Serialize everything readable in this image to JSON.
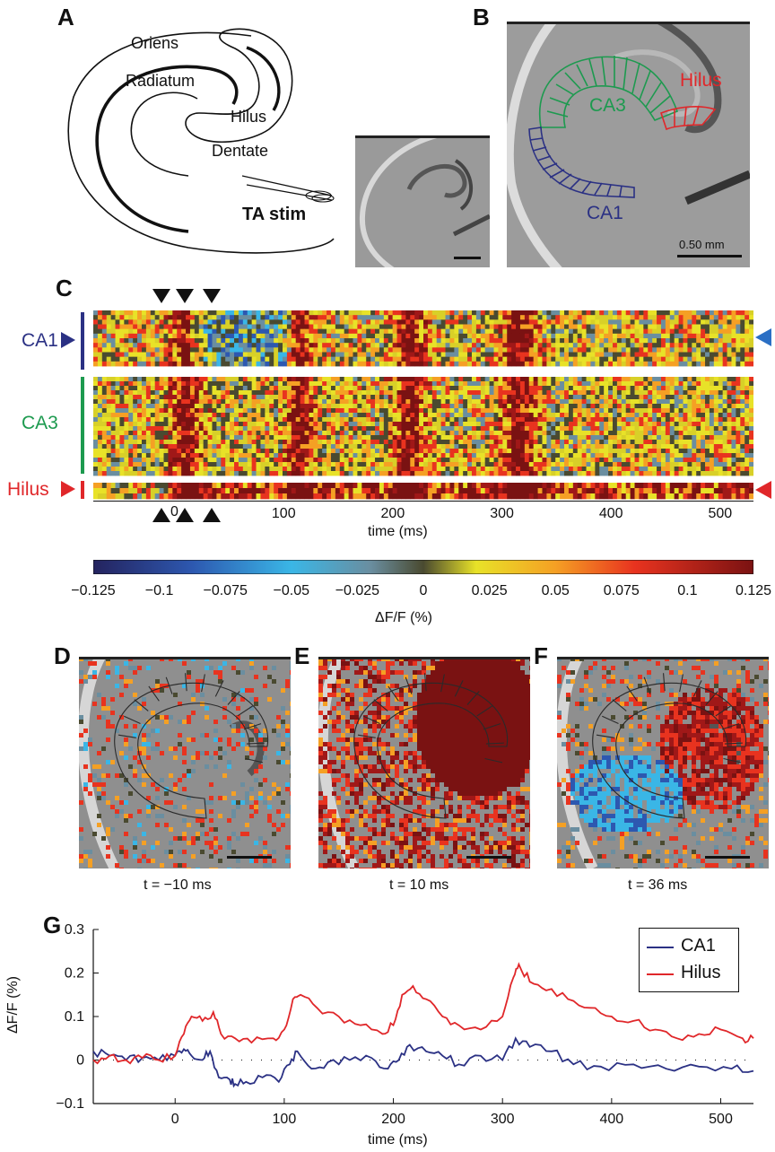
{
  "panels": {
    "A": "A",
    "B": "B",
    "C": "C",
    "D": "D",
    "E": "E",
    "F": "F",
    "G": "G"
  },
  "schematic": {
    "labels": [
      "Oriens",
      "Radiatum",
      "Hilus",
      "Dentate"
    ],
    "stim": "TA stim"
  },
  "panel_b": {
    "regions": [
      "CA3",
      "Hilus",
      "CA1"
    ],
    "scale": "0.50 mm",
    "colors": {
      "CA1": "#2b3184",
      "CA3": "#1d9a4f",
      "Hilus": "#e0272a"
    }
  },
  "panel_c": {
    "rows": [
      "CA1",
      "CA3",
      "Hilus"
    ],
    "tick_zero": "0",
    "colorbar_ticks": [
      "−0.125",
      "−0.1",
      "−0.075",
      "−0.05",
      "−0.025",
      "0",
      "0.025",
      "0.05",
      "0.075",
      "0.1",
      "0.125"
    ],
    "colorbar_label": "ΔF/F (%)"
  },
  "snapshots": {
    "D": "t = −10 ms",
    "E": "t = 10 ms",
    "F": "t = 36 ms"
  },
  "chart_data": [
    {
      "type": "heatmap",
      "xlabel": "time (ms)",
      "x_ticks": [
        "100",
        "200",
        "300",
        "400",
        "500"
      ],
      "xlim": [
        -75,
        530
      ],
      "rows": [
        "CA1",
        "CA3",
        "Hilus"
      ],
      "colorbar_range": [
        -0.125,
        0.125
      ],
      "colorbar_label": "ΔF/F (%)",
      "stim_markers_ms": [
        -10,
        10,
        36
      ]
    },
    {
      "type": "line",
      "xlabel": "time (ms)",
      "ylabel": "ΔF/F (%)",
      "xlim": [
        -75,
        530
      ],
      "ylim": [
        -0.1,
        0.3
      ],
      "x_ticks": [
        "0",
        "100",
        "200",
        "300",
        "400",
        "500"
      ],
      "y_ticks": [
        "−0.1",
        "0",
        "0.1",
        "0.2",
        "0.3"
      ],
      "legend_position": "top-right",
      "series": [
        {
          "name": "CA1",
          "color": "#2b3184",
          "x": [
            -75,
            -60,
            -45,
            -30,
            -15,
            0,
            8,
            15,
            25,
            32,
            40,
            50,
            55,
            65,
            80,
            95,
            105,
            112,
            125,
            140,
            160,
            180,
            195,
            205,
            215,
            230,
            245,
            260,
            280,
            300,
            312,
            325,
            345,
            365,
            390,
            420,
            450,
            480,
            510,
            530
          ],
          "y": [
            0.02,
            0.01,
            0.0,
            0.005,
            0.0,
            0.01,
            0.025,
            0.01,
            0.0,
            0.02,
            -0.04,
            -0.045,
            -0.055,
            -0.05,
            -0.04,
            -0.05,
            -0.01,
            0.02,
            -0.02,
            -0.005,
            0.0,
            0.005,
            -0.02,
            0.0,
            0.035,
            0.02,
            0.01,
            -0.01,
            0.01,
            0.0,
            0.05,
            0.03,
            0.02,
            -0.01,
            -0.015,
            -0.01,
            -0.02,
            -0.015,
            -0.02,
            -0.025
          ]
        },
        {
          "name": "Hilus",
          "color": "#e0272a",
          "x": [
            -75,
            -60,
            -45,
            -30,
            -15,
            0,
            8,
            15,
            25,
            35,
            42,
            55,
            70,
            90,
            100,
            108,
            115,
            130,
            150,
            170,
            190,
            200,
            208,
            218,
            230,
            245,
            260,
            280,
            300,
            310,
            315,
            325,
            340,
            360,
            380,
            400,
            420,
            440,
            460,
            480,
            500,
            520,
            530
          ],
          "y": [
            0.0,
            0.01,
            0.0,
            0.005,
            0.0,
            0.01,
            0.06,
            0.1,
            0.09,
            0.11,
            0.06,
            0.05,
            0.04,
            0.05,
            0.07,
            0.14,
            0.15,
            0.12,
            0.1,
            0.08,
            0.06,
            0.08,
            0.15,
            0.17,
            0.14,
            0.1,
            0.08,
            0.07,
            0.1,
            0.19,
            0.22,
            0.18,
            0.16,
            0.14,
            0.12,
            0.1,
            0.09,
            0.07,
            0.05,
            0.06,
            0.07,
            0.05,
            0.05
          ]
        }
      ]
    }
  ]
}
